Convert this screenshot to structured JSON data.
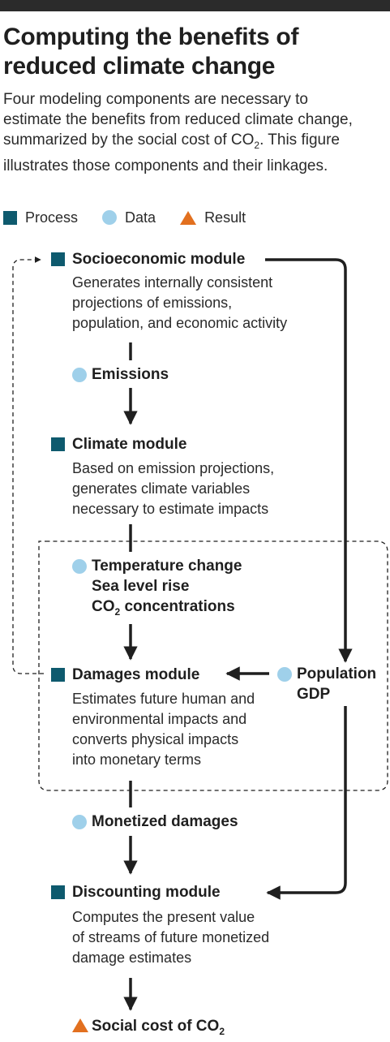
{
  "header": {
    "title_line1": "Computing the benefits of",
    "title_line2": "reduced climate change",
    "subtitle_line1": "Four modeling components are necessary to",
    "subtitle_line2": "estimate the benefits from reduced climate change,",
    "subtitle_line3_a": "summarized by the social cost of CO",
    "subtitle_line3_sub": "2",
    "subtitle_line3_b": ". This figure",
    "subtitle_line4": "illustrates those components and their linkages."
  },
  "legend": {
    "process": "Process",
    "data": "Data",
    "result": "Result"
  },
  "colors": {
    "process": "#0e5a6e",
    "data": "#9fd0ea",
    "result": "#e2701f",
    "line": "#1f1f1f"
  },
  "nodes": {
    "socioeconomic": {
      "title": "Socioeconomic module",
      "desc": [
        "Generates internally consistent",
        "projections of emissions,",
        "population, and economic activity"
      ]
    },
    "emissions": {
      "title": "Emissions"
    },
    "climate": {
      "title": "Climate module",
      "desc": [
        "Based on emission projections,",
        "generates climate variables",
        "necessary to estimate impacts"
      ]
    },
    "climate_vars": {
      "line1": "Temperature change",
      "line2": "Sea level rise",
      "line3_a": "CO",
      "line3_sub": "2",
      "line3_b": " concentrations"
    },
    "population": {
      "line1": "Population",
      "line2": "GDP"
    },
    "damages": {
      "title": "Damages module",
      "desc": [
        "Estimates future human and",
        "environmental impacts and",
        "converts physical impacts",
        "into monetary terms"
      ]
    },
    "monetized": {
      "title": "Monetized damages"
    },
    "discounting": {
      "title": "Discounting module",
      "desc": [
        "Computes the present value",
        "of streams of future monetized",
        "damage estimates"
      ]
    },
    "result": {
      "title_a": "Social cost of CO",
      "title_sub": "2"
    }
  }
}
